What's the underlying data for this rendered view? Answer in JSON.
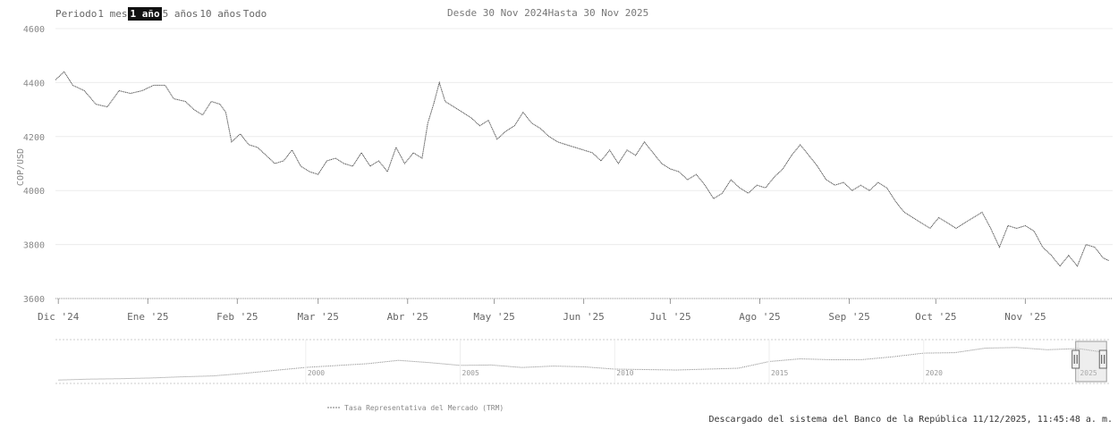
{
  "range_selector": {
    "label": "Periodo",
    "buttons": [
      "1 mes",
      "1 año",
      "5 años",
      "10 años",
      "Todo"
    ],
    "active": "1 año"
  },
  "date_range": {
    "from_label": "Desde",
    "from_value": "30 Nov 2024",
    "to_label": "Hasta",
    "to_value": "30 Nov 2025"
  },
  "footer": {
    "credit": "Descargado del sistema del Banco de la República 11/12/2025, 11:45:48 a. m."
  },
  "colors": {
    "line": "#555555",
    "grid": "#e6e6e6",
    "axis": "#999999",
    "navigator_line": "#888888",
    "navigator_handle": "#666666"
  },
  "chart_data": [
    {
      "type": "line",
      "ylabel": "COP/USD",
      "ylim": [
        3600,
        4600
      ],
      "yticks": [
        3600,
        3800,
        4000,
        4200,
        4400,
        4600
      ],
      "ytick_labels": [
        "3600",
        "3800",
        "4000",
        "4200",
        "4400",
        "4600"
      ],
      "xlim": [
        "2024-11-30",
        "2025-11-30"
      ],
      "xticks": [
        "2024-12-01",
        "2025-01-01",
        "2025-02-01",
        "2025-03-01",
        "2025-04-01",
        "2025-05-01",
        "2025-06-01",
        "2025-07-01",
        "2025-08-01",
        "2025-09-01",
        "2025-10-01",
        "2025-11-01"
      ],
      "xtick_labels": [
        "Dic '24",
        "Ene '25",
        "Feb '25",
        "Mar '25",
        "Abr '25",
        "May '25",
        "Jun '25",
        "Jul '25",
        "Ago '25",
        "Sep '25",
        "Oct '25",
        "Nov '25"
      ],
      "grid": false,
      "series": [
        {
          "values": [
            [
              "2024-11-30",
              4410
            ],
            [
              "2024-12-03",
              4440
            ],
            [
              "2024-12-06",
              4390
            ],
            [
              "2024-12-10",
              4370
            ],
            [
              "2024-12-14",
              4320
            ],
            [
              "2024-12-18",
              4310
            ],
            [
              "2024-12-22",
              4370
            ],
            [
              "2024-12-26",
              4360
            ],
            [
              "2024-12-30",
              4370
            ],
            [
              "2025-01-03",
              4390
            ],
            [
              "2025-01-07",
              4390
            ],
            [
              "2025-01-10",
              4340
            ],
            [
              "2025-01-14",
              4330
            ],
            [
              "2025-01-17",
              4300
            ],
            [
              "2025-01-20",
              4280
            ],
            [
              "2025-01-23",
              4330
            ],
            [
              "2025-01-26",
              4320
            ],
            [
              "2025-01-28",
              4290
            ],
            [
              "2025-01-30",
              4180
            ],
            [
              "2025-02-02",
              4210
            ],
            [
              "2025-02-05",
              4170
            ],
            [
              "2025-02-08",
              4160
            ],
            [
              "2025-02-11",
              4130
            ],
            [
              "2025-02-14",
              4100
            ],
            [
              "2025-02-17",
              4110
            ],
            [
              "2025-02-20",
              4150
            ],
            [
              "2025-02-23",
              4090
            ],
            [
              "2025-02-26",
              4070
            ],
            [
              "2025-03-01",
              4060
            ],
            [
              "2025-03-04",
              4110
            ],
            [
              "2025-03-07",
              4120
            ],
            [
              "2025-03-10",
              4100
            ],
            [
              "2025-03-13",
              4090
            ],
            [
              "2025-03-16",
              4140
            ],
            [
              "2025-03-19",
              4090
            ],
            [
              "2025-03-22",
              4110
            ],
            [
              "2025-03-25",
              4070
            ],
            [
              "2025-03-28",
              4160
            ],
            [
              "2025-03-31",
              4100
            ],
            [
              "2025-04-03",
              4140
            ],
            [
              "2025-04-06",
              4120
            ],
            [
              "2025-04-08",
              4250
            ],
            [
              "2025-04-10",
              4320
            ],
            [
              "2025-04-12",
              4400
            ],
            [
              "2025-04-14",
              4330
            ],
            [
              "2025-04-17",
              4310
            ],
            [
              "2025-04-20",
              4290
            ],
            [
              "2025-04-23",
              4270
            ],
            [
              "2025-04-26",
              4240
            ],
            [
              "2025-04-29",
              4260
            ],
            [
              "2025-05-02",
              4190
            ],
            [
              "2025-05-05",
              4220
            ],
            [
              "2025-05-08",
              4240
            ],
            [
              "2025-05-11",
              4290
            ],
            [
              "2025-05-14",
              4250
            ],
            [
              "2025-05-17",
              4230
            ],
            [
              "2025-05-20",
              4200
            ],
            [
              "2025-05-23",
              4180
            ],
            [
              "2025-05-26",
              4170
            ],
            [
              "2025-05-29",
              4160
            ],
            [
              "2025-06-01",
              4150
            ],
            [
              "2025-06-04",
              4140
            ],
            [
              "2025-06-07",
              4110
            ],
            [
              "2025-06-10",
              4150
            ],
            [
              "2025-06-13",
              4100
            ],
            [
              "2025-06-16",
              4150
            ],
            [
              "2025-06-19",
              4130
            ],
            [
              "2025-06-22",
              4180
            ],
            [
              "2025-06-25",
              4140
            ],
            [
              "2025-06-28",
              4100
            ],
            [
              "2025-07-01",
              4080
            ],
            [
              "2025-07-04",
              4070
            ],
            [
              "2025-07-07",
              4040
            ],
            [
              "2025-07-10",
              4060
            ],
            [
              "2025-07-13",
              4020
            ],
            [
              "2025-07-16",
              3970
            ],
            [
              "2025-07-19",
              3990
            ],
            [
              "2025-07-22",
              4040
            ],
            [
              "2025-07-25",
              4010
            ],
            [
              "2025-07-28",
              3990
            ],
            [
              "2025-07-31",
              4020
            ],
            [
              "2025-08-03",
              4010
            ],
            [
              "2025-08-06",
              4050
            ],
            [
              "2025-08-09",
              4080
            ],
            [
              "2025-08-12",
              4130
            ],
            [
              "2025-08-15",
              4170
            ],
            [
              "2025-08-18",
              4130
            ],
            [
              "2025-08-21",
              4090
            ],
            [
              "2025-08-24",
              4040
            ],
            [
              "2025-08-27",
              4020
            ],
            [
              "2025-08-30",
              4030
            ],
            [
              "2025-09-02",
              4000
            ],
            [
              "2025-09-05",
              4020
            ],
            [
              "2025-09-08",
              4000
            ],
            [
              "2025-09-11",
              4030
            ],
            [
              "2025-09-14",
              4010
            ],
            [
              "2025-09-17",
              3960
            ],
            [
              "2025-09-20",
              3920
            ],
            [
              "2025-09-23",
              3900
            ],
            [
              "2025-09-26",
              3880
            ],
            [
              "2025-09-29",
              3860
            ],
            [
              "2025-10-02",
              3900
            ],
            [
              "2025-10-05",
              3880
            ],
            [
              "2025-10-08",
              3860
            ],
            [
              "2025-10-11",
              3880
            ],
            [
              "2025-10-14",
              3900
            ],
            [
              "2025-10-17",
              3920
            ],
            [
              "2025-10-20",
              3860
            ],
            [
              "2025-10-23",
              3790
            ],
            [
              "2025-10-26",
              3870
            ],
            [
              "2025-10-29",
              3860
            ],
            [
              "2025-11-01",
              3870
            ],
            [
              "2025-11-04",
              3850
            ],
            [
              "2025-11-07",
              3790
            ],
            [
              "2025-11-10",
              3760
            ],
            [
              "2025-11-13",
              3720
            ],
            [
              "2025-11-16",
              3760
            ],
            [
              "2025-11-19",
              3720
            ],
            [
              "2025-11-22",
              3800
            ],
            [
              "2025-11-25",
              3790
            ],
            [
              "2025-11-28",
              3750
            ],
            [
              "2025-11-30",
              3740
            ]
          ]
        }
      ]
    },
    {
      "type": "line",
      "navigator": true,
      "xticks": [
        2000,
        2005,
        2010,
        2015,
        2020,
        2025
      ],
      "xtick_labels": [
        "2000",
        "2005",
        "2010",
        "2015",
        "2020",
        "2025"
      ],
      "xlim": [
        1991.9,
        2026.0
      ],
      "ylim": [
        500,
        5000
      ],
      "selected_range": [
        2024.92,
        2025.92
      ],
      "series": [
        {
          "name": "Tasa Representativa del Mercado (TRM)",
          "values": [
            [
              1992,
              680
            ],
            [
              1993,
              780
            ],
            [
              1994,
              830
            ],
            [
              1995,
              910
            ],
            [
              1996,
              1040
            ],
            [
              1997,
              1140
            ],
            [
              1998,
              1420
            ],
            [
              1999,
              1760
            ],
            [
              2000,
              2090
            ],
            [
              2001,
              2300
            ],
            [
              2002,
              2510
            ],
            [
              2003,
              2880
            ],
            [
              2004,
              2630
            ],
            [
              2005,
              2320
            ],
            [
              2006,
              2360
            ],
            [
              2007,
              2080
            ],
            [
              2008,
              2240
            ],
            [
              2009,
              2160
            ],
            [
              2010,
              1900
            ],
            [
              2011,
              1850
            ],
            [
              2012,
              1800
            ],
            [
              2013,
              1900
            ],
            [
              2014,
              2000
            ],
            [
              2015,
              2750
            ],
            [
              2016,
              3050
            ],
            [
              2017,
              2950
            ],
            [
              2018,
              2960
            ],
            [
              2019,
              3280
            ],
            [
              2020,
              3690
            ],
            [
              2021,
              3740
            ],
            [
              2022,
              4250
            ],
            [
              2023,
              4320
            ],
            [
              2024,
              4070
            ],
            [
              2025,
              4200
            ],
            [
              2025.9,
              3750
            ]
          ]
        }
      ]
    }
  ]
}
